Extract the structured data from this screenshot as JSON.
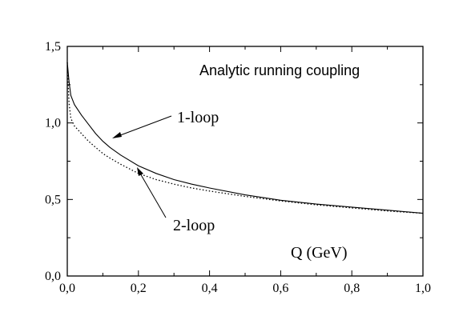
{
  "chart_data": {
    "type": "line",
    "title": "",
    "xlabel": "Q (GeV)",
    "ylabel": "",
    "xlim": [
      0,
      1.0
    ],
    "ylim": [
      0,
      1.5
    ],
    "x_ticks": [
      "0,0",
      "0,2",
      "0,4",
      "0,6",
      "0,8",
      "1,0"
    ],
    "y_ticks": [
      "0,0",
      "0,5",
      "1,0",
      "1,5"
    ],
    "grid": false,
    "annotations": {
      "main_label": "Analytic running coupling",
      "series_1_label": "1-loop",
      "series_2_label": "2-loop"
    },
    "series": [
      {
        "name": "1-loop",
        "style": "solid",
        "color": "#000000",
        "x": [
          0.0,
          0.005,
          0.01,
          0.02,
          0.04,
          0.06,
          0.08,
          0.1,
          0.12,
          0.15,
          0.2,
          0.25,
          0.3,
          0.35,
          0.4,
          0.5,
          0.6,
          0.7,
          0.8,
          0.9,
          1.0
        ],
        "y": [
          1.396,
          1.27,
          1.18,
          1.12,
          1.05,
          0.99,
          0.93,
          0.88,
          0.84,
          0.79,
          0.72,
          0.67,
          0.63,
          0.6,
          0.575,
          0.53,
          0.495,
          0.47,
          0.45,
          0.43,
          0.41
        ]
      },
      {
        "name": "2-loop",
        "style": "dotted",
        "color": "#000000",
        "x": [
          0.0,
          0.005,
          0.01,
          0.02,
          0.04,
          0.06,
          0.08,
          0.1,
          0.12,
          0.15,
          0.2,
          0.25,
          0.3,
          0.35,
          0.4,
          0.5,
          0.6,
          0.7,
          0.8,
          0.9,
          1.0
        ],
        "y": [
          1.396,
          1.13,
          1.03,
          0.98,
          0.93,
          0.88,
          0.84,
          0.8,
          0.77,
          0.73,
          0.67,
          0.63,
          0.6,
          0.575,
          0.555,
          0.52,
          0.49,
          0.465,
          0.445,
          0.425,
          0.41
        ]
      }
    ]
  }
}
